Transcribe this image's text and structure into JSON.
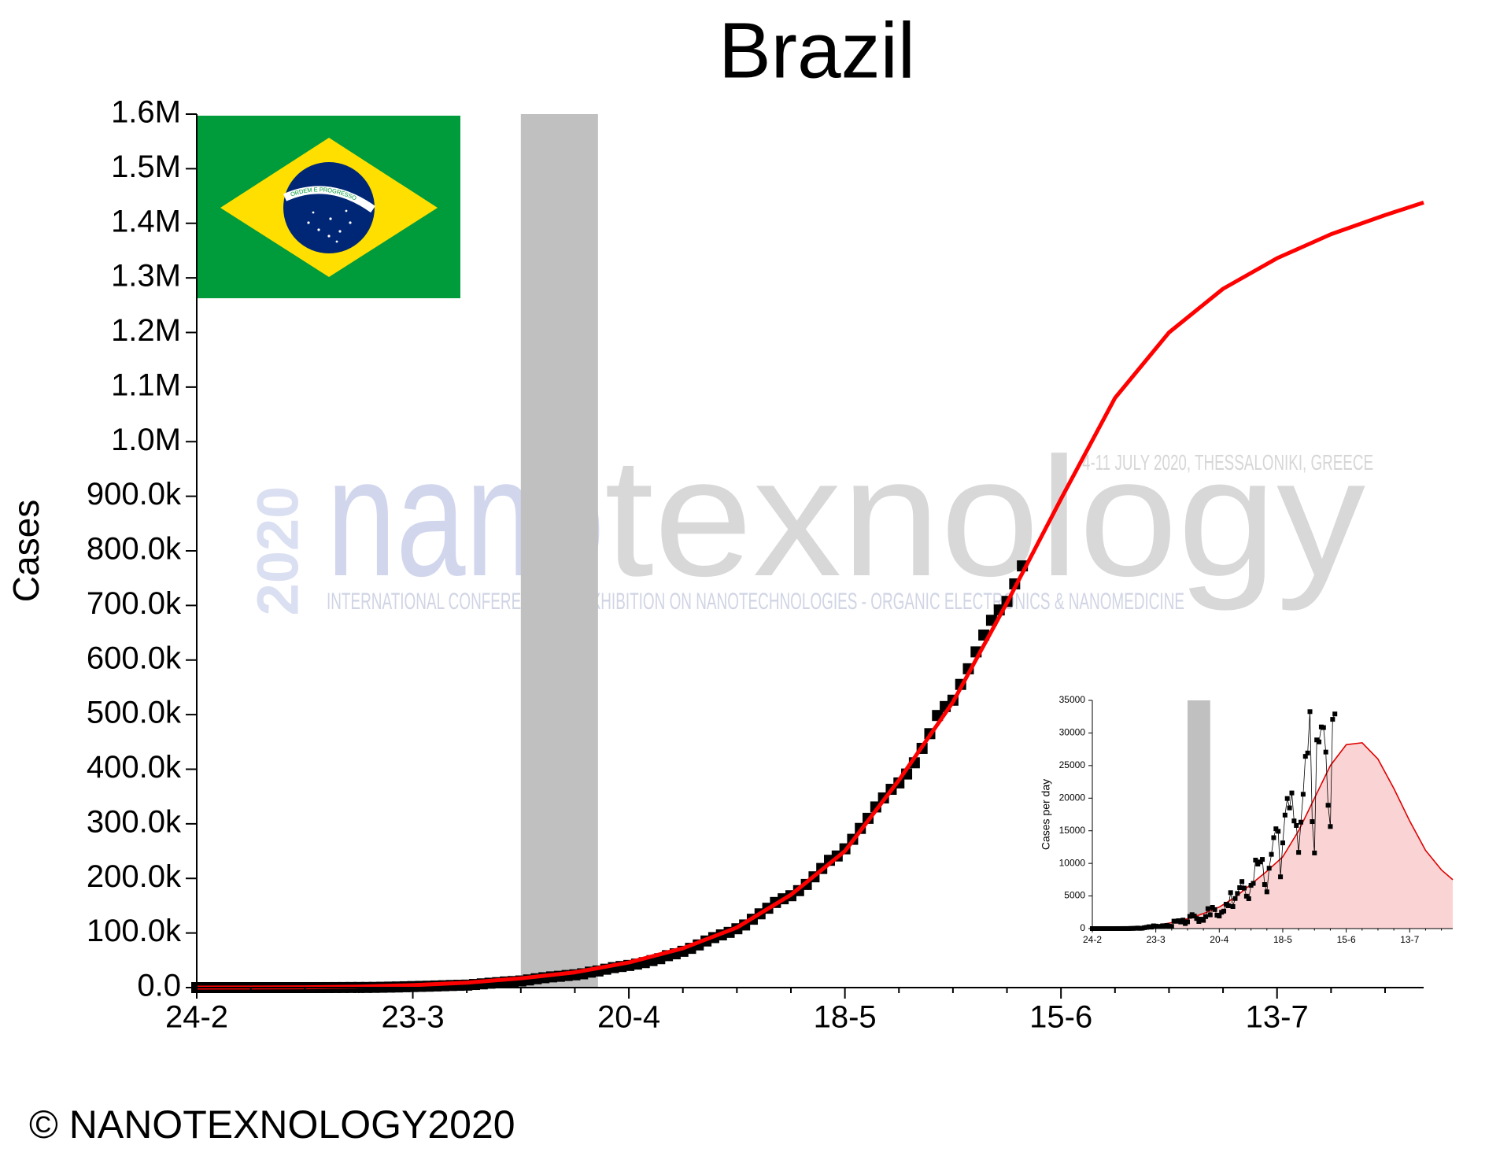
{
  "chart_data": [
    {
      "type": "line",
      "title": "Brazil",
      "ylabel": "Cases",
      "xlim": [
        "24-2",
        "1-8"
      ],
      "xticks": [
        "24-2",
        "23-3",
        "20-4",
        "18-5",
        "15-6",
        "13-7"
      ],
      "ylim": [
        0,
        1600000
      ],
      "yticks": [
        {
          "value": 0,
          "label": "0.0"
        },
        {
          "value": 100000,
          "label": "100.0k"
        },
        {
          "value": 200000,
          "label": "200.0k"
        },
        {
          "value": 300000,
          "label": "300.0k"
        },
        {
          "value": 400000,
          "label": "400.0k"
        },
        {
          "value": 500000,
          "label": "500.0k"
        },
        {
          "value": 600000,
          "label": "600.0k"
        },
        {
          "value": 700000,
          "label": "700.0k"
        },
        {
          "value": 800000,
          "label": "800.0k"
        },
        {
          "value": 900000,
          "label": "900.0k"
        },
        {
          "value": 1000000,
          "label": "1.0M"
        },
        {
          "value": 1100000,
          "label": "1.1M"
        },
        {
          "value": 1200000,
          "label": "1.2M"
        },
        {
          "value": 1300000,
          "label": "1.3M"
        },
        {
          "value": 1400000,
          "label": "1.4M"
        },
        {
          "value": 1500000,
          "label": "1.5M"
        },
        {
          "value": 1600000,
          "label": "1.6M"
        }
      ],
      "shaded_band": {
        "x": [
          "6-4",
          "16-4"
        ],
        "color": "#c0c0c0"
      },
      "series": [
        {
          "style": "marker",
          "color": "#000000",
          "x": [
            "24-2",
            "25-2",
            "26-2",
            "27-2",
            "28-2",
            "29-2",
            "1-3",
            "2-3",
            "3-3",
            "4-3",
            "5-3",
            "6-3",
            "7-3",
            "8-3",
            "9-3",
            "10-3",
            "11-3",
            "12-3",
            "13-3",
            "14-3",
            "15-3",
            "16-3",
            "17-3",
            "18-3",
            "19-3",
            "20-3",
            "21-3",
            "22-3",
            "23-3",
            "24-3",
            "25-3",
            "26-3",
            "27-3",
            "28-3",
            "29-3",
            "30-3",
            "31-3",
            "1-4",
            "2-4",
            "3-4",
            "4-4",
            "5-4",
            "6-4",
            "7-4",
            "8-4",
            "9-4",
            "10-4",
            "11-4",
            "12-4",
            "13-4",
            "14-4",
            "15-4",
            "16-4",
            "17-4",
            "18-4",
            "19-4",
            "20-4",
            "21-4",
            "22-4",
            "23-4",
            "24-4",
            "25-4",
            "26-4",
            "27-4",
            "28-4",
            "29-4",
            "30-4",
            "1-5",
            "2-5",
            "3-5",
            "4-5",
            "5-5",
            "6-5",
            "7-5",
            "8-5",
            "9-5",
            "10-5",
            "11-5",
            "12-5",
            "13-5",
            "14-5",
            "15-5",
            "16-5",
            "17-5",
            "18-5",
            "19-5",
            "20-5",
            "21-5",
            "22-5",
            "23-5",
            "24-5",
            "25-5",
            "26-5",
            "27-5",
            "28-5",
            "29-5",
            "30-5",
            "31-5",
            "1-6",
            "2-6",
            "3-6",
            "4-6",
            "5-6",
            "6-6",
            "7-6",
            "8-6",
            "9-6",
            "10-6"
          ],
          "values": [
            0,
            0,
            1,
            1,
            1,
            1,
            1,
            2,
            2,
            2,
            2,
            3,
            4,
            8,
            13,
            19,
            25,
            52,
            77,
            121,
            200,
            234,
            291,
            428,
            621,
            904,
            1128,
            1546,
            1924,
            2247,
            2554,
            2985,
            3417,
            3904,
            4256,
            4579,
            5717,
            6836,
            8044,
            9056,
            10360,
            11130,
            12161,
            14034,
            16170,
            18092,
            19638,
            20727,
            22169,
            23430,
            25262,
            28320,
            30425,
            33682,
            36599,
            38654,
            40581,
            43079,
            45757,
            49492,
            52995,
            58509,
            61888,
            66501,
            71886,
            78162,
            85380,
            91589,
            96559,
            101147,
            107780,
            114715,
            125218,
            135106,
            145328,
            155939,
            162699,
            168331,
            177589,
            188974,
            202918,
            218223,
            233142,
            241080,
            254220,
            271628,
            291579,
            310087,
            330890,
            347398,
            363211,
            374898,
            391222,
            411821,
            438238,
            465166,
            498440,
            514849,
            526447,
            555383,
            584016,
            614941,
            645771,
            672846,
            691758,
            707412,
            739503,
            772416
          ]
        },
        {
          "style": "line",
          "color": "#ff0000",
          "x": [
            "24-2",
            "2-3",
            "9-3",
            "16-3",
            "23-3",
            "30-3",
            "6-4",
            "13-4",
            "20-4",
            "27-4",
            "4-5",
            "11-5",
            "18-5",
            "25-5",
            "1-6",
            "8-6",
            "15-6",
            "22-6",
            "29-6",
            "6-7",
            "13-7",
            "20-7",
            "27-7",
            "1-8"
          ],
          "values": [
            30,
            150,
            600,
            1800,
            4500,
            9000,
            17000,
            28000,
            46000,
            72000,
            110000,
            170000,
            250000,
            380000,
            523000,
            705000,
            895000,
            1080000,
            1200000,
            1280000,
            1336000,
            1380000,
            1415000,
            1438000
          ]
        }
      ]
    },
    {
      "type": "line",
      "ylabel": "Cases per day",
      "xlim": [
        "24-2",
        "1-8"
      ],
      "xticks": [
        "24-2",
        "23-3",
        "20-4",
        "18-5",
        "15-6",
        "13-7"
      ],
      "ylim": [
        0,
        35000
      ],
      "yticks": [
        0,
        5000,
        10000,
        15000,
        20000,
        25000,
        30000,
        35000
      ],
      "shaded_band": {
        "x": [
          "6-4",
          "16-4"
        ],
        "color": "#c0c0c0"
      },
      "series": [
        {
          "style": "area",
          "color": "#e00000",
          "fill": "#fad4d4",
          "x": [
            "24-2",
            "2-3",
            "9-3",
            "16-3",
            "23-3",
            "30-3",
            "6-4",
            "13-4",
            "20-4",
            "27-4",
            "4-5",
            "11-5",
            "18-5",
            "25-5",
            "1-6",
            "8-6",
            "15-6",
            "22-6",
            "29-6",
            "6-7",
            "13-7",
            "20-7",
            "27-7",
            "1-8"
          ],
          "values": [
            0,
            30,
            100,
            250,
            500,
            900,
            1500,
            2300,
            3300,
            4800,
            6800,
            8800,
            11000,
            15000,
            20000,
            25000,
            28200,
            28500,
            26000,
            21500,
            16500,
            12000,
            9000,
            7500
          ]
        },
        {
          "style": "line-marker",
          "color": "#000000",
          "x": [
            "24-2",
            "25-2",
            "26-2",
            "27-2",
            "28-2",
            "29-2",
            "1-3",
            "2-3",
            "3-3",
            "4-3",
            "5-3",
            "6-3",
            "7-3",
            "8-3",
            "9-3",
            "10-3",
            "11-3",
            "12-3",
            "13-3",
            "14-3",
            "15-3",
            "16-3",
            "17-3",
            "18-3",
            "19-3",
            "20-3",
            "21-3",
            "22-3",
            "23-3",
            "24-3",
            "25-3",
            "26-3",
            "27-3",
            "28-3",
            "29-3",
            "30-3",
            "31-3",
            "1-4",
            "2-4",
            "3-4",
            "4-4",
            "5-4",
            "6-4",
            "7-4",
            "8-4",
            "9-4",
            "10-4",
            "11-4",
            "12-4",
            "13-4",
            "14-4",
            "15-4",
            "16-4",
            "17-4",
            "18-4",
            "19-4",
            "20-4",
            "21-4",
            "22-4",
            "23-4",
            "24-4",
            "25-4",
            "26-4",
            "27-4",
            "28-4",
            "29-4",
            "30-4",
            "1-5",
            "2-5",
            "3-5",
            "4-5",
            "5-5",
            "6-5",
            "7-5",
            "8-5",
            "9-5",
            "10-5",
            "11-5",
            "12-5",
            "13-5",
            "14-5",
            "15-5",
            "16-5",
            "17-5",
            "18-5",
            "19-5",
            "20-5",
            "21-5",
            "22-5",
            "23-5",
            "24-5",
            "25-5",
            "26-5",
            "27-5",
            "28-5",
            "29-5",
            "30-5",
            "31-5",
            "1-6",
            "2-6",
            "3-6",
            "4-6",
            "5-6",
            "6-6",
            "7-6",
            "8-6",
            "9-6",
            "10-6"
          ],
          "values": [
            0,
            0,
            1,
            0,
            0,
            0,
            0,
            1,
            0,
            0,
            0,
            1,
            1,
            4,
            5,
            6,
            6,
            27,
            25,
            44,
            79,
            34,
            57,
            137,
            193,
            283,
            224,
            418,
            378,
            323,
            307,
            431,
            432,
            487,
            352,
            323,
            1138,
            1119,
            1208,
            1012,
            1304,
            770,
            1031,
            1873,
            2136,
            1922,
            1546,
            1089,
            1442,
            1261,
            1832,
            3058,
            2105,
            3257,
            2917,
            2055,
            1927,
            2498,
            2678,
            3735,
            3503,
            5514,
            3379,
            4613,
            5385,
            6276,
            7218,
            6209,
            4970,
            4588,
            6633,
            6935,
            10503,
            9888,
            10222,
            10611,
            6760,
            5632,
            9258,
            11385,
            13944,
            15305,
            14919,
            7938,
            13140,
            17408,
            19951,
            18508,
            20803,
            16508,
            15813,
            11687,
            16324,
            20599,
            26417,
            26928,
            33274,
            16409,
            11598,
            28936,
            28633,
            30925,
            30830,
            27075,
            18912,
            15654,
            32091,
            32913
          ]
        }
      ]
    }
  ],
  "footer": "© NANOTEXNOLOGY2020",
  "flag_motto": "ORDEM E PROGRESSO",
  "watermark": {
    "word_start": "nano",
    "word_end": "texnology",
    "year": "2020",
    "tagline": "INTERNATIONAL CONFERENCES & EXHIBITION ON NANOTECHNOLOGIES - ORGANIC ELECTRONICS & NANOMEDICINE",
    "event": "4-11 JULY 2020, THESSALONIKI, GREECE"
  }
}
